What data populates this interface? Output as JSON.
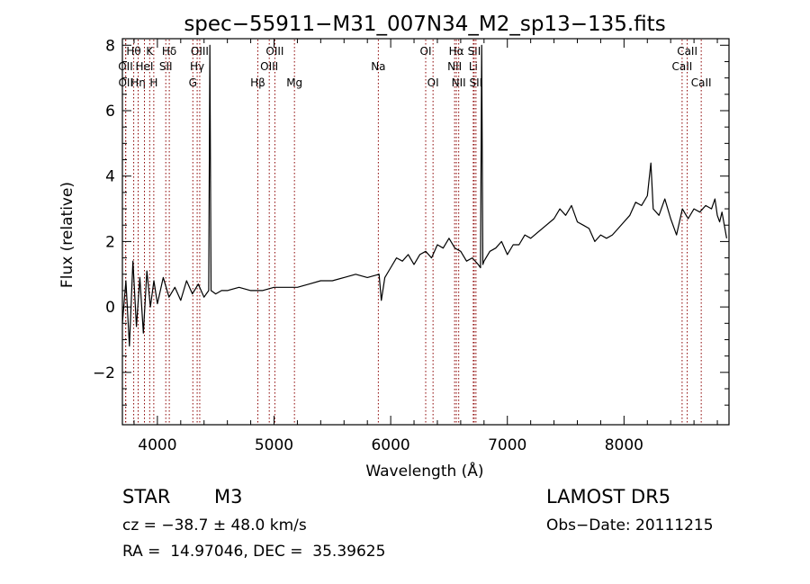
{
  "chart_data": {
    "type": "line",
    "title": "spec−55911−M31_007N34_M2_sp13−135.fits",
    "xlabel": "Wavelength (Å)",
    "ylabel": "Flux (relative)",
    "xlim": [
      3700,
      8900
    ],
    "ylim": [
      -3.6,
      8.2
    ],
    "xticks": [
      4000,
      5000,
      6000,
      7000,
      8000
    ],
    "xtick_labels": [
      "4000",
      "5000",
      "6000",
      "7000",
      "8000"
    ],
    "yticks": [
      -2,
      0,
      2,
      4,
      6,
      8
    ],
    "ytick_labels": [
      "−2",
      "0",
      "2",
      "4",
      "6",
      "8"
    ],
    "grid": false,
    "colors": {
      "spectrum": "#000000",
      "lines": "#8b0000"
    },
    "series": [
      {
        "x": [
          3700,
          3730,
          3760,
          3790,
          3820,
          3850,
          3880,
          3910,
          3940,
          3970,
          4000,
          4050,
          4100,
          4150,
          4200,
          4250,
          4300,
          4350,
          4400,
          4440,
          4450,
          4460,
          4500,
          4550,
          4600,
          4700,
          4800,
          4900,
          5000,
          5100,
          5200,
          5300,
          5400,
          5500,
          5600,
          5700,
          5800,
          5900,
          5920,
          5950,
          6000,
          6050,
          6100,
          6150,
          6200,
          6250,
          6300,
          6350,
          6400,
          6450,
          6500,
          6550,
          6600,
          6650,
          6700,
          6750,
          6770,
          6780,
          6790,
          6800,
          6850,
          6900,
          6950,
          7000,
          7050,
          7100,
          7150,
          7200,
          7300,
          7400,
          7450,
          7500,
          7550,
          7600,
          7650,
          7700,
          7750,
          7800,
          7850,
          7900,
          7950,
          8000,
          8050,
          8100,
          8150,
          8200,
          8230,
          8250,
          8300,
          8350,
          8400,
          8450,
          8500,
          8550,
          8600,
          8650,
          8700,
          8750,
          8780,
          8800,
          8820,
          8840,
          8860,
          8880
        ],
        "values": [
          -0.5,
          0.8,
          -1.2,
          1.4,
          -0.6,
          0.9,
          -0.8,
          1.1,
          0.0,
          0.8,
          0.1,
          0.9,
          0.3,
          0.6,
          0.2,
          0.8,
          0.4,
          0.7,
          0.3,
          0.5,
          8.0,
          0.5,
          0.4,
          0.5,
          0.5,
          0.6,
          0.5,
          0.5,
          0.6,
          0.6,
          0.6,
          0.7,
          0.8,
          0.8,
          0.9,
          1.0,
          0.9,
          1.0,
          0.2,
          0.9,
          1.2,
          1.5,
          1.4,
          1.6,
          1.3,
          1.6,
          1.7,
          1.5,
          1.9,
          1.8,
          2.1,
          1.8,
          1.7,
          1.4,
          1.5,
          1.3,
          1.2,
          8.0,
          1.3,
          1.4,
          1.7,
          1.8,
          2.0,
          1.6,
          1.9,
          1.9,
          2.2,
          2.1,
          2.4,
          2.7,
          3.0,
          2.8,
          3.1,
          2.6,
          2.5,
          2.4,
          2.0,
          2.2,
          2.1,
          2.2,
          2.4,
          2.6,
          2.8,
          3.2,
          3.1,
          3.4,
          4.4,
          3.0,
          2.8,
          3.3,
          2.7,
          2.2,
          3.0,
          2.7,
          3.0,
          2.9,
          3.1,
          3.0,
          3.3,
          2.8,
          2.6,
          2.9,
          2.5,
          2.1
        ]
      }
    ],
    "line_markers": [
      {
        "x": 3727,
        "label": "OII",
        "row": 1
      },
      {
        "x": 3729,
        "label": "OII",
        "row": 2
      },
      {
        "x": 3797,
        "label": "Hθ",
        "row": 0
      },
      {
        "x": 3835,
        "label": "Hη",
        "row": 2
      },
      {
        "x": 3889,
        "label": "HeI",
        "row": 1
      },
      {
        "x": 3934,
        "label": "K",
        "row": 0
      },
      {
        "x": 3969,
        "label": "H",
        "row": 2
      },
      {
        "x": 4072,
        "label": "SII",
        "row": 1
      },
      {
        "x": 4102,
        "label": "Hδ",
        "row": 0
      },
      {
        "x": 4304,
        "label": "G",
        "row": 2
      },
      {
        "x": 4341,
        "label": "Hγ",
        "row": 1
      },
      {
        "x": 4363,
        "label": "OIII",
        "row": 0
      },
      {
        "x": 4861,
        "label": "Hβ",
        "row": 2
      },
      {
        "x": 4959,
        "label": "OIII",
        "row": 1
      },
      {
        "x": 5007,
        "label": "OIII",
        "row": 0
      },
      {
        "x": 5175,
        "label": "Mg",
        "row": 2
      },
      {
        "x": 5894,
        "label": "Na",
        "row": 1
      },
      {
        "x": 6300,
        "label": "OI",
        "row": 0
      },
      {
        "x": 6363,
        "label": "OI",
        "row": 2
      },
      {
        "x": 6548,
        "label": "NII",
        "row": 1
      },
      {
        "x": 6563,
        "label": "Hα",
        "row": 0
      },
      {
        "x": 6583,
        "label": "NII",
        "row": 2
      },
      {
        "x": 6708,
        "label": "Li",
        "row": 1
      },
      {
        "x": 6716,
        "label": "SII",
        "row": 0
      },
      {
        "x": 6731,
        "label": "SII",
        "row": 2
      },
      {
        "x": 8498,
        "label": "CaII",
        "row": 1
      },
      {
        "x": 8542,
        "label": "CaII",
        "row": 0
      },
      {
        "x": 8662,
        "label": "CaII",
        "row": 2
      }
    ]
  },
  "info": {
    "class": "STAR",
    "subclass": "M3",
    "survey": "LAMOST DR5",
    "cz": "cz = −38.7 ± 48.0 km/s",
    "obs_date": "Obs−Date: 20111215",
    "coords": "RA =  14.97046, DEC =  35.39625"
  }
}
